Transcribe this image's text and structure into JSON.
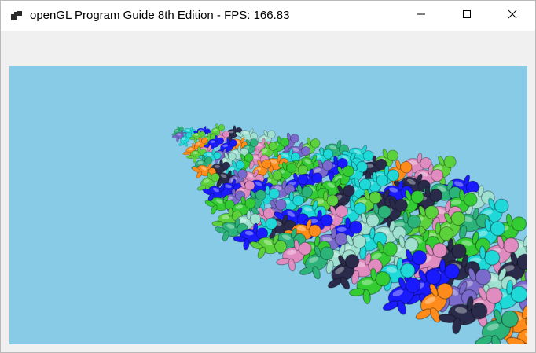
{
  "window": {
    "title": "openGL Program Guide 8th Edition - FPS: 166.83"
  },
  "titlebar": {
    "icon": "app-window-icon",
    "buttons": [
      {
        "name": "minimize-button",
        "icon": "minimize-icon"
      },
      {
        "name": "maximize-button",
        "icon": "maximize-icon"
      },
      {
        "name": "close-button",
        "icon": "close-icon"
      }
    ]
  },
  "viewport": {
    "background": "#87cbe7",
    "scene": "instanced-3d-figures",
    "model_colors": [
      "#1fd8d8",
      "#2bb37a",
      "#1a1aff",
      "#33cc33",
      "#5bd13b",
      "#2a2a4a",
      "#7a6acb",
      "#e08cc0",
      "#ff8c1a",
      "#9fe0d0"
    ]
  }
}
